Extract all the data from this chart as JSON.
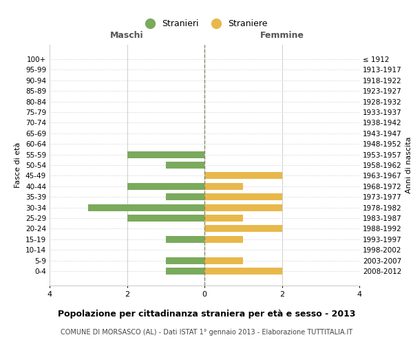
{
  "age_groups": [
    "100+",
    "95-99",
    "90-94",
    "85-89",
    "80-84",
    "75-79",
    "70-74",
    "65-69",
    "60-64",
    "55-59",
    "50-54",
    "45-49",
    "40-44",
    "35-39",
    "30-34",
    "25-29",
    "20-24",
    "15-19",
    "10-14",
    "5-9",
    "0-4"
  ],
  "birth_years": [
    "≤ 1912",
    "1913-1917",
    "1918-1922",
    "1923-1927",
    "1928-1932",
    "1933-1937",
    "1938-1942",
    "1943-1947",
    "1948-1952",
    "1953-1957",
    "1958-1962",
    "1963-1967",
    "1968-1972",
    "1973-1977",
    "1978-1982",
    "1983-1987",
    "1988-1992",
    "1993-1997",
    "1998-2002",
    "2003-2007",
    "2008-2012"
  ],
  "maschi": [
    0,
    0,
    0,
    0,
    0,
    0,
    0,
    0,
    0,
    2,
    1,
    0,
    2,
    1,
    3,
    2,
    0,
    1,
    0,
    1,
    1
  ],
  "femmine": [
    0,
    0,
    0,
    0,
    0,
    0,
    0,
    0,
    0,
    0,
    0,
    2,
    1,
    2,
    2,
    1,
    2,
    1,
    0,
    1,
    2
  ],
  "maschi_color": "#7aaa5c",
  "femmine_color": "#e8b84b",
  "title": "Popolazione per cittadinanza straniera per età e sesso - 2013",
  "subtitle": "COMUNE DI MORSASCO (AL) - Dati ISTAT 1° gennaio 2013 - Elaborazione TUTTITALIA.IT",
  "ylabel_left": "Fasce di età",
  "ylabel_right": "Anni di nascita",
  "xlabel_left": "Maschi",
  "xlabel_right": "Femmine",
  "legend_stranieri": "Stranieri",
  "legend_straniere": "Straniere",
  "xlim": 4,
  "bg_color": "#ffffff",
  "grid_color": "#cccccc",
  "center_line_color": "#888866"
}
